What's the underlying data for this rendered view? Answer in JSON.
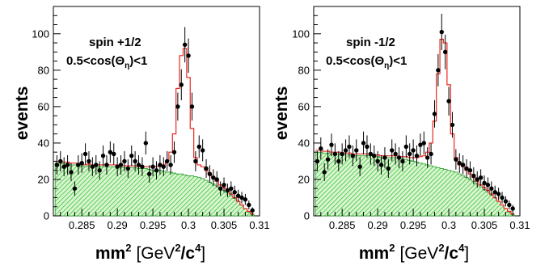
{
  "chart_data": [
    {
      "type": "histogram-with-points",
      "xlim": [
        0.281,
        0.31
      ],
      "ylim": [
        0,
        115
      ],
      "xticks": [
        "0.285",
        "0.29",
        "0.295",
        "0.3",
        "0.305",
        "0.31"
      ],
      "yticks": [
        "0",
        "20",
        "40",
        "60",
        "80",
        "100"
      ],
      "ylabel": "events",
      "xlabel": {
        "base": "mm",
        "sup1": "2",
        "open": "[GeV",
        "sup2": "2",
        "mid": "/c",
        "sup3": "4",
        "close": "]"
      },
      "annotation": {
        "line1": "spin +1/2",
        "line2_pre": "0.5<cos(Θ",
        "line2_sub": "η",
        "line2_post": ")<1"
      },
      "bin_width": 0.0005,
      "x": [
        0.2815,
        0.282,
        0.2825,
        0.283,
        0.2835,
        0.284,
        0.2845,
        0.285,
        0.2855,
        0.286,
        0.2865,
        0.287,
        0.2875,
        0.288,
        0.2885,
        0.289,
        0.2895,
        0.29,
        0.2905,
        0.291,
        0.2915,
        0.292,
        0.2925,
        0.293,
        0.2935,
        0.294,
        0.2945,
        0.295,
        0.2955,
        0.296,
        0.2965,
        0.297,
        0.2975,
        0.298,
        0.2985,
        0.299,
        0.2995,
        0.3,
        0.3005,
        0.301,
        0.3015,
        0.302,
        0.3025,
        0.303,
        0.3035,
        0.304,
        0.3045,
        0.305,
        0.3055,
        0.306,
        0.3065,
        0.307,
        0.3075,
        0.308,
        0.3085,
        0.309
      ],
      "data": [
        28,
        30,
        27,
        28,
        24,
        15,
        28,
        29,
        34,
        30,
        27,
        28,
        25,
        33,
        28,
        35,
        34,
        27,
        28,
        30,
        26,
        33,
        30,
        28,
        27,
        40,
        23,
        27,
        25,
        28,
        27,
        30,
        28,
        35,
        60,
        72,
        94,
        88,
        60,
        30,
        38,
        36,
        26,
        23,
        21,
        20,
        15,
        17,
        14,
        15,
        13,
        11,
        10,
        9,
        6,
        3
      ],
      "errors": [
        5.3,
        5.5,
        5.2,
        5.3,
        4.9,
        3.9,
        5.3,
        5.4,
        5.8,
        5.5,
        5.2,
        5.3,
        5,
        5.7,
        5.3,
        5.9,
        5.8,
        5.2,
        5.3,
        5.5,
        5.1,
        5.7,
        5.5,
        5.3,
        5.2,
        6.3,
        4.8,
        5.2,
        5,
        5.3,
        5.2,
        5.5,
        5.3,
        5.9,
        7.7,
        8.5,
        9.7,
        9.4,
        7.7,
        5.5,
        6.2,
        6,
        5.1,
        4.8,
        4.6,
        4.5,
        3.9,
        4.1,
        3.7,
        3.9,
        3.6,
        3.3,
        3.2,
        3,
        2.4,
        1.7
      ],
      "fit": [
        30,
        30,
        29.5,
        29.5,
        29,
        29,
        28.5,
        28.5,
        28,
        28.5,
        28,
        28,
        28,
        28,
        28,
        28,
        28,
        28,
        27.5,
        27.5,
        27.5,
        27.5,
        27.5,
        27,
        27,
        27,
        27,
        27,
        27,
        27.5,
        28,
        30,
        35,
        45,
        70,
        88,
        92,
        76,
        48,
        32,
        28,
        27,
        25,
        23,
        21,
        19,
        17,
        15.5,
        14,
        12,
        10,
        8,
        6,
        4,
        2.5,
        1
      ],
      "background": [
        29,
        29,
        28.5,
        28.5,
        28,
        28,
        27.5,
        27.5,
        27,
        27.5,
        27,
        27,
        27,
        27,
        27,
        27,
        27,
        27,
        26.5,
        26.5,
        26.5,
        26.5,
        26.5,
        26,
        26,
        26,
        25.5,
        25,
        25,
        25,
        24.5,
        24,
        24,
        23.5,
        23,
        23,
        22.5,
        22,
        22,
        21.5,
        21,
        20.5,
        19.5,
        18.5,
        17.5,
        16.5,
        15,
        14,
        12.5,
        11,
        9.5,
        8,
        6,
        4,
        2,
        0.5
      ]
    },
    {
      "type": "histogram-with-points",
      "xlim": [
        0.281,
        0.31
      ],
      "ylim": [
        0,
        115
      ],
      "xticks": [
        "0.285",
        "0.29",
        "0.295",
        "0.3",
        "0.305",
        "0.31"
      ],
      "yticks": [
        "0",
        "20",
        "40",
        "60",
        "80",
        "100"
      ],
      "ylabel": "events",
      "xlabel": {
        "base": "mm",
        "sup1": "2",
        "open": "[GeV",
        "sup2": "2",
        "mid": "/c",
        "sup3": "4",
        "close": "]"
      },
      "annotation": {
        "line1": "spin -1/2",
        "line2_pre": "0.5<cos(Θ",
        "line2_sub": "η",
        "line2_post": ")<1"
      },
      "bin_width": 0.0005,
      "x": [
        0.2815,
        0.282,
        0.2825,
        0.283,
        0.2835,
        0.284,
        0.2845,
        0.285,
        0.2855,
        0.286,
        0.2865,
        0.287,
        0.2875,
        0.288,
        0.2885,
        0.289,
        0.2895,
        0.29,
        0.2905,
        0.291,
        0.2915,
        0.292,
        0.2925,
        0.293,
        0.2935,
        0.294,
        0.2945,
        0.295,
        0.2955,
        0.296,
        0.2965,
        0.297,
        0.2975,
        0.298,
        0.2985,
        0.299,
        0.2995,
        0.3,
        0.3005,
        0.301,
        0.3015,
        0.302,
        0.3025,
        0.303,
        0.3035,
        0.304,
        0.3045,
        0.305,
        0.3055,
        0.306,
        0.3065,
        0.307,
        0.3075,
        0.308,
        0.3085,
        0.309
      ],
      "data": [
        30,
        37,
        24,
        31,
        39,
        34,
        30,
        34,
        36,
        38,
        33,
        36,
        27,
        40,
        38,
        34,
        33,
        30,
        28,
        32,
        26,
        36,
        34,
        32,
        30,
        38,
        34,
        36,
        33,
        39,
        40,
        32,
        34,
        56,
        80,
        101,
        90,
        63,
        50,
        31,
        29,
        28,
        26,
        25,
        22,
        20,
        21,
        18,
        17,
        15,
        13,
        12,
        10,
        8,
        6,
        4
      ],
      "errors": [
        5.5,
        6.1,
        4.9,
        5.6,
        6.2,
        5.8,
        5.5,
        5.8,
        6,
        6.2,
        5.7,
        6,
        5.2,
        6.3,
        6.2,
        5.8,
        5.7,
        5.5,
        5.3,
        5.7,
        5.1,
        6,
        5.8,
        5.7,
        5.5,
        6.2,
        5.8,
        6,
        5.7,
        6.2,
        6.3,
        5.7,
        5.8,
        7.5,
        8.9,
        10,
        9.5,
        7.9,
        7.1,
        5.6,
        5.4,
        5.3,
        5.1,
        5,
        4.7,
        4.5,
        4.6,
        4.2,
        4.1,
        3.9,
        3.6,
        3.5,
        3.2,
        2.8,
        2.4,
        2
      ],
      "fit": [
        36,
        36,
        35.5,
        35.5,
        35,
        35,
        35,
        34.5,
        34.5,
        34.5,
        34,
        34,
        34,
        34,
        34,
        34,
        33.5,
        33.5,
        33,
        33,
        33,
        33,
        33,
        32.5,
        32.5,
        32.5,
        32,
        32,
        32,
        32.5,
        33,
        35,
        40,
        52,
        78,
        97,
        95,
        72,
        45,
        32,
        28,
        27,
        25,
        23,
        21,
        19,
        17,
        15.5,
        14,
        12,
        10,
        8,
        6,
        4,
        2.5,
        1
      ],
      "background": [
        35,
        35,
        34.5,
        34.5,
        34,
        34,
        34,
        33.5,
        33.5,
        33.5,
        33,
        33,
        33,
        33,
        33,
        33,
        32.5,
        32.5,
        32,
        32,
        32,
        32,
        32,
        31.5,
        31.5,
        31,
        30.5,
        30,
        29.5,
        29,
        28.5,
        28,
        27.5,
        27,
        26.5,
        26,
        25.5,
        25,
        24.5,
        24,
        23,
        22,
        21,
        20,
        19,
        17.5,
        16,
        14.5,
        13,
        11.5,
        10,
        8,
        6,
        4,
        2,
        0.5
      ]
    }
  ]
}
